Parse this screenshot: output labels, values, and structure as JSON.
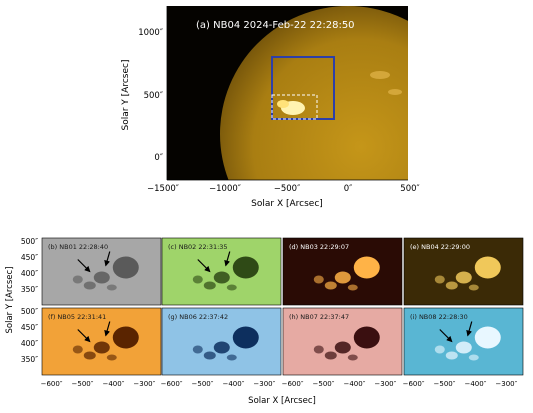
{
  "figure_top": {
    "panel_label": "(a) NB04 2024-Feb-22 22:28:50",
    "x_axis_label": "Solar X [Arcsec]",
    "y_axis_label": "Solar Y [Arcsec]",
    "x_ticks": [
      {
        "value": -1500,
        "label": "−1500″"
      },
      {
        "value": -1000,
        "label": "−1000″"
      },
      {
        "value": -500,
        "label": "−500″"
      },
      {
        "value": 0,
        "label": "0″"
      },
      {
        "value": 500,
        "label": "500″"
      }
    ],
    "y_ticks": [
      {
        "value": 1000,
        "label": "1000″"
      },
      {
        "value": 500,
        "label": "500″"
      },
      {
        "value": 0,
        "label": "0″"
      }
    ],
    "colors": {
      "sun": "#b58a13",
      "box_solid": "#2d3fa8",
      "box_dashed": "#ffffff"
    }
  },
  "figure_grid": {
    "x_axis_label": "Solar X [Arcsec]",
    "y_axis_label": "Solar Y [Arcsec]",
    "x_ticks": [
      {
        "value": -600,
        "label": "−600″"
      },
      {
        "value": -500,
        "label": "−500″"
      },
      {
        "value": -400,
        "label": "−400″"
      },
      {
        "value": -300,
        "label": "−300″"
      }
    ],
    "y_ticks": [
      {
        "value": 500,
        "label": "500″"
      },
      {
        "value": 450,
        "label": "450″"
      },
      {
        "value": 400,
        "label": "400″"
      },
      {
        "value": 350,
        "label": "350″"
      }
    ],
    "panels": [
      {
        "label": "(b) NB01 22:28:40",
        "bg": "#a7a7a7",
        "spot": "#5a5a5a",
        "arrows": true
      },
      {
        "label": "(c) NB02 22:31:35",
        "bg": "#9fd46a",
        "spot": "#2f4a16",
        "arrows": true
      },
      {
        "label": "(d) NB03 22:29:07",
        "bg": "#2a0b05",
        "spot": "#ffb347",
        "arrows": false
      },
      {
        "label": "(e) NB04 22:29:00",
        "bg": "#3b2a06",
        "spot": "#f0c85a",
        "arrows": false
      },
      {
        "label": "(f) NB05 22:31:41",
        "bg": "#f2a238",
        "spot": "#5a2400",
        "arrows": true
      },
      {
        "label": "(g) NB06 22:37:42",
        "bg": "#8fc3e6",
        "spot": "#0d2f5e",
        "arrows": false
      },
      {
        "label": "(h) NB07 22:37:47",
        "bg": "#e6aaa3",
        "spot": "#3a0f10",
        "arrows": false
      },
      {
        "label": "(i) NB08 22:28:30",
        "bg": "#59b6d3",
        "spot": "#e8f7ff",
        "arrows": true
      }
    ]
  }
}
